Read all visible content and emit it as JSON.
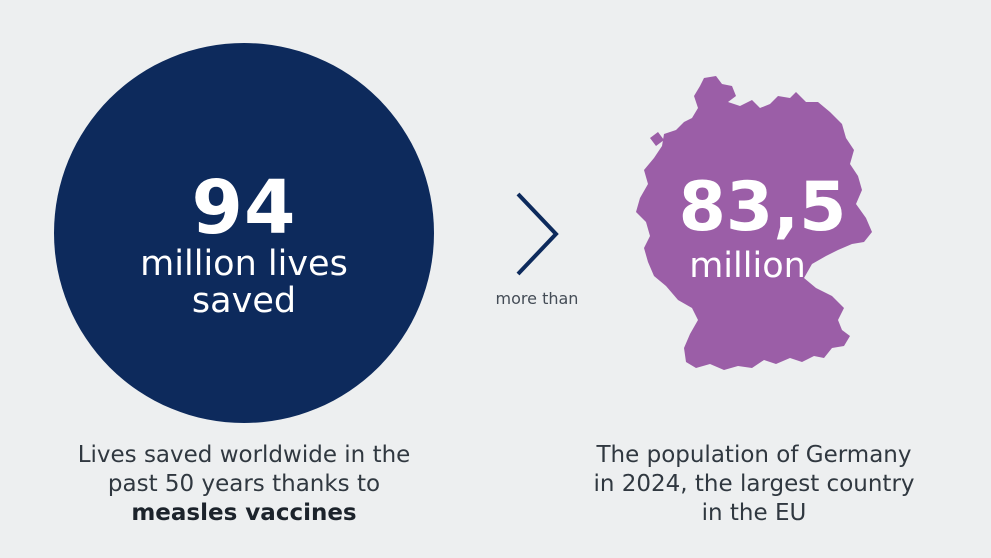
{
  "left_stat": {
    "number": "94",
    "line1": "million lives",
    "line2": "saved",
    "caption_line1": "Lives saved worldwide in the",
    "caption_line2": "past 50 years thanks to",
    "caption_bold": "measles vaccines"
  },
  "comparison": {
    "text": "more than",
    "icon": "chevron-right-icon"
  },
  "right_stat": {
    "number": "83,5",
    "unit": "million",
    "caption_line1": "The population of Germany",
    "caption_line2": "in 2024, the largest country",
    "caption_line3": "in the EU",
    "map_icon": "germany-map-icon"
  },
  "colors": {
    "background": "#edeff0",
    "circle": "#0d2a5c",
    "map": "#9b5ea7",
    "chevron": "#0d2a5c"
  }
}
